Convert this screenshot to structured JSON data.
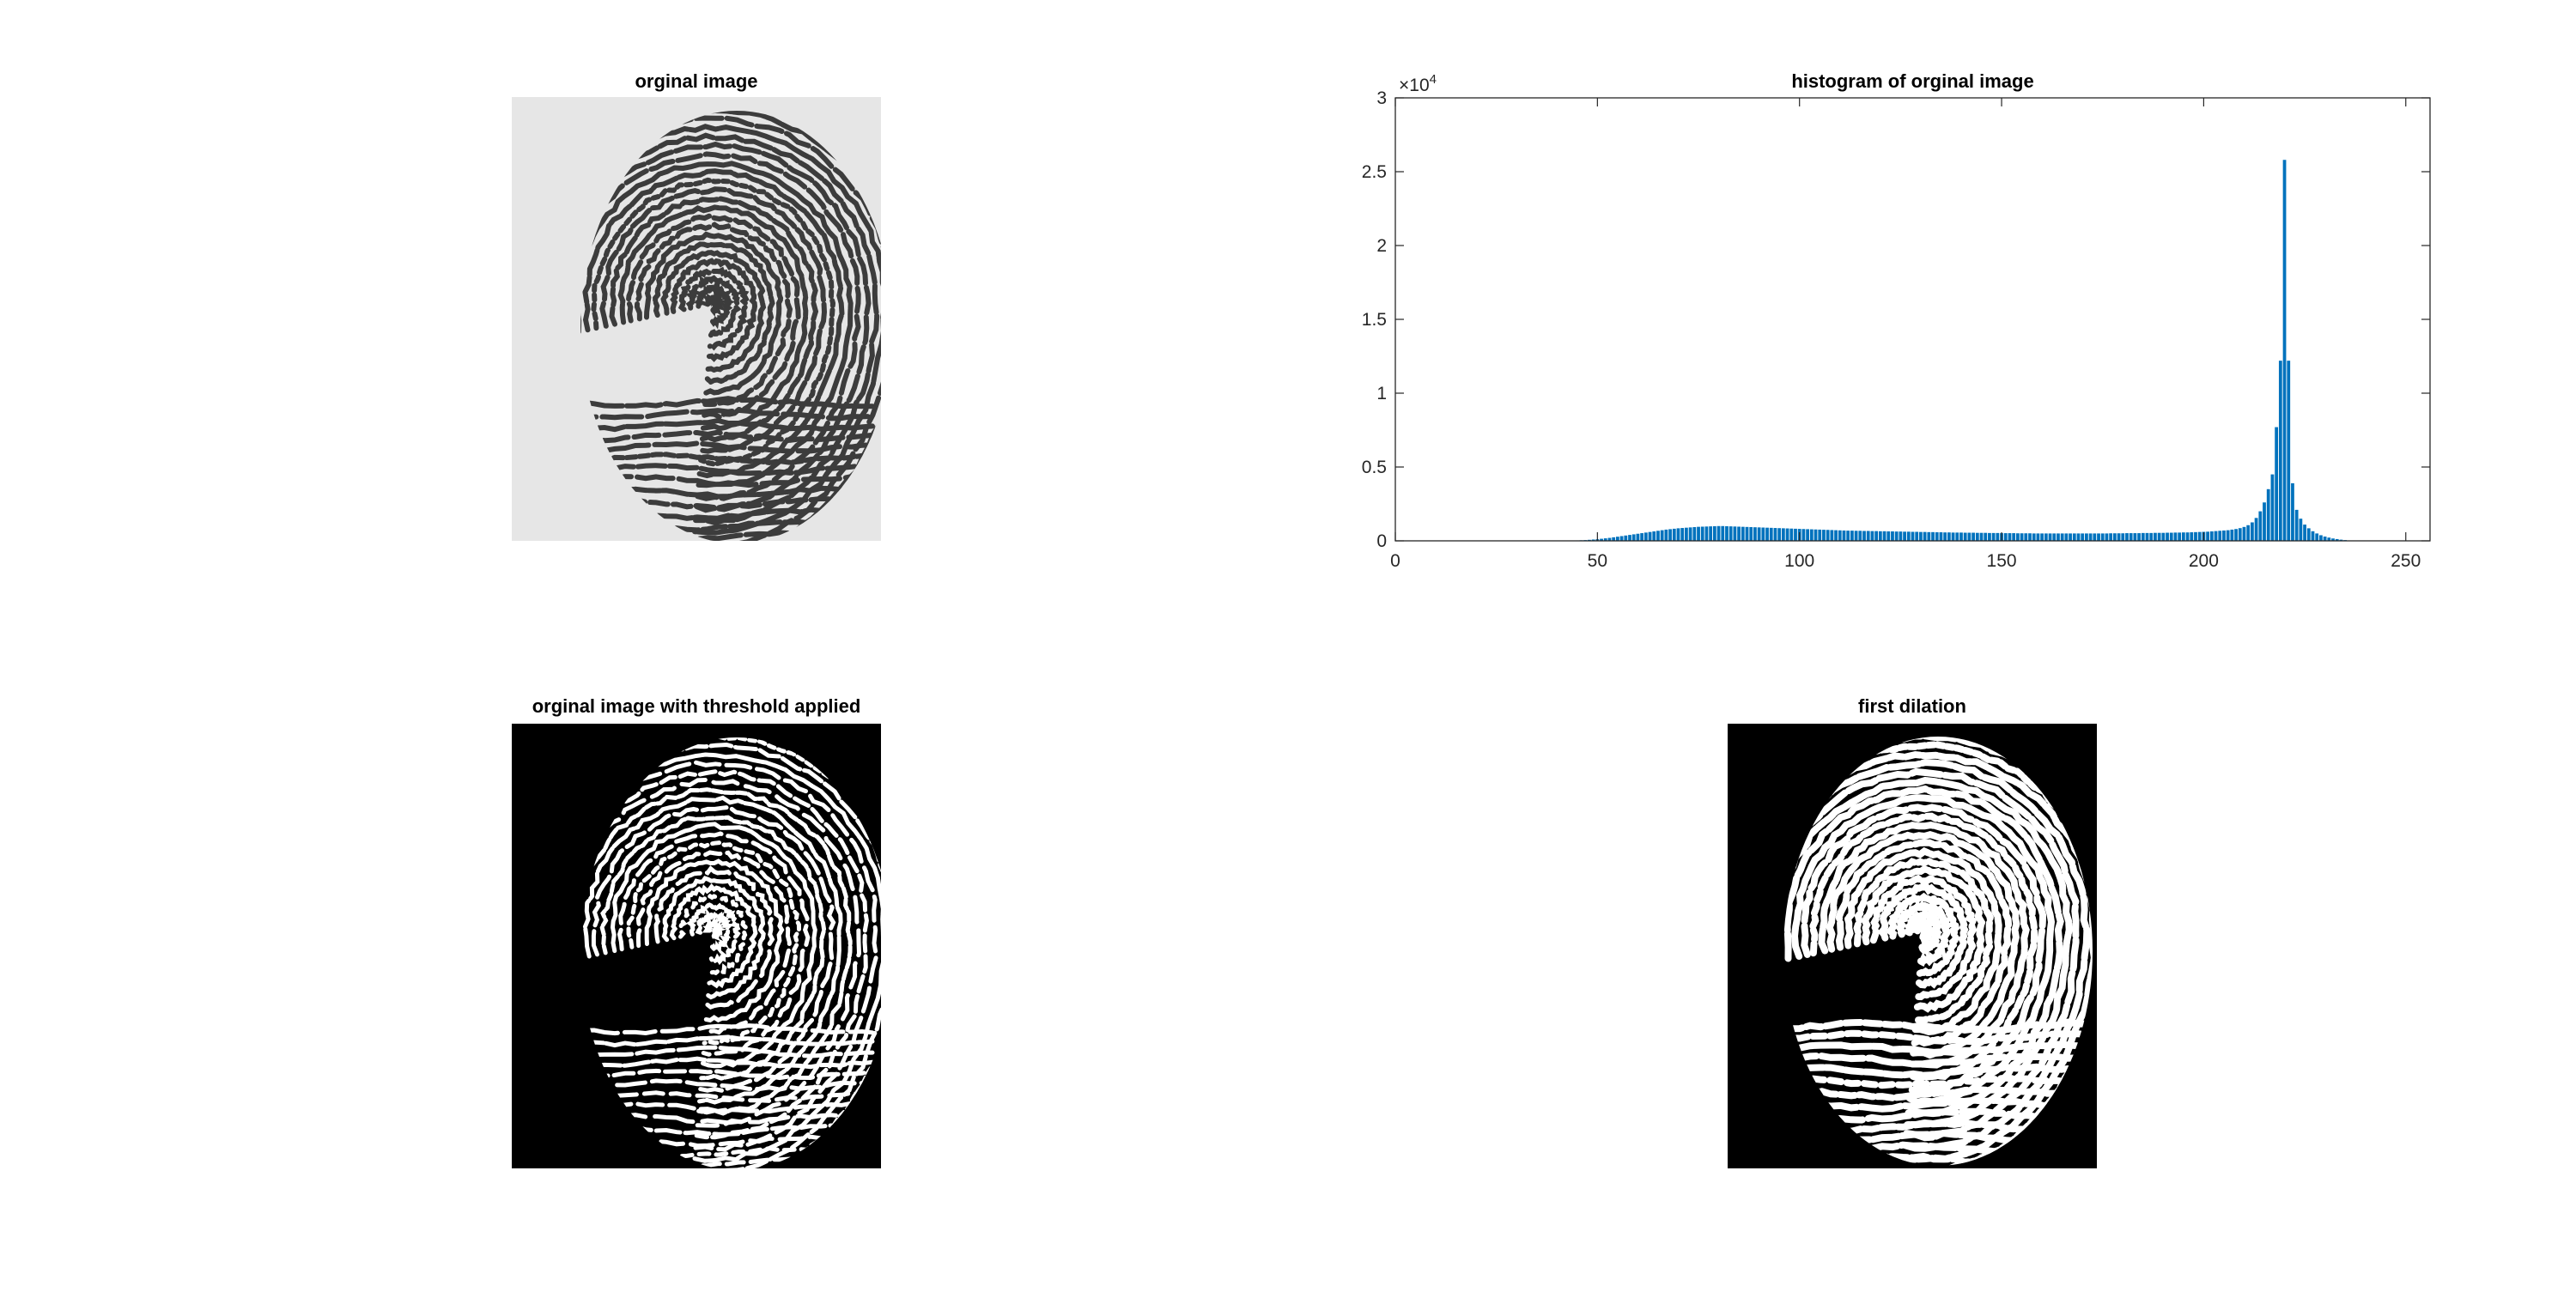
{
  "figure": {
    "panels": [
      {
        "id": "p1",
        "title": "orginal image",
        "kind": "grayscale-fingerprint"
      },
      {
        "id": "p2",
        "title": "histogram of orginal image",
        "kind": "histogram"
      },
      {
        "id": "p3",
        "title": "orginal image with threshold applied",
        "kind": "binary-fingerprint"
      },
      {
        "id": "p4",
        "title": "first dilation",
        "kind": "dilated-fingerprint"
      }
    ]
  },
  "colors": {
    "bar": "#0072BD",
    "axis": "#262626",
    "image_bg_gray": "#e6e6e6",
    "ridge_dark": "#3c3c3c",
    "binary_bg": "#000000",
    "binary_fg": "#ffffff"
  },
  "chart_data": {
    "type": "bar",
    "title": "histogram of orginal image",
    "xlabel": "",
    "ylabel": "",
    "xlim": [
      0,
      256
    ],
    "ylim": [
      0,
      30000
    ],
    "y_exponent_label": "×10",
    "y_exponent_power": "4",
    "xticks": [
      0,
      50,
      100,
      150,
      200,
      250
    ],
    "xtick_labels": [
      "0",
      "50",
      "100",
      "150",
      "200",
      "250"
    ],
    "yticks": [
      0,
      5000,
      10000,
      15000,
      20000,
      25000,
      30000
    ],
    "ytick_labels": [
      "0",
      "0.5",
      "1",
      "1.5",
      "2",
      "2.5",
      "3"
    ],
    "grid": false,
    "bins_x": [
      45,
      46,
      47,
      48,
      49,
      50,
      51,
      52,
      53,
      54,
      55,
      56,
      57,
      58,
      59,
      60,
      61,
      62,
      63,
      64,
      65,
      66,
      67,
      68,
      69,
      70,
      71,
      72,
      73,
      74,
      75,
      76,
      77,
      78,
      79,
      80,
      81,
      82,
      83,
      84,
      85,
      86,
      87,
      88,
      89,
      90,
      91,
      92,
      93,
      94,
      95,
      96,
      97,
      98,
      99,
      100,
      101,
      102,
      103,
      104,
      105,
      106,
      107,
      108,
      109,
      110,
      111,
      112,
      113,
      114,
      115,
      116,
      117,
      118,
      119,
      120,
      121,
      122,
      123,
      124,
      125,
      126,
      127,
      128,
      129,
      130,
      131,
      132,
      133,
      134,
      135,
      136,
      137,
      138,
      139,
      140,
      141,
      142,
      143,
      144,
      145,
      146,
      147,
      148,
      149,
      150,
      151,
      152,
      153,
      154,
      155,
      156,
      157,
      158,
      159,
      160,
      161,
      162,
      163,
      164,
      165,
      166,
      167,
      168,
      169,
      170,
      171,
      172,
      173,
      174,
      175,
      176,
      177,
      178,
      179,
      180,
      181,
      182,
      183,
      184,
      185,
      186,
      187,
      188,
      189,
      190,
      191,
      192,
      193,
      194,
      195,
      196,
      197,
      198,
      199,
      200,
      201,
      202,
      203,
      204,
      205,
      206,
      207,
      208,
      209,
      210,
      211,
      212,
      213,
      214,
      215,
      216,
      217,
      218,
      219,
      220,
      221,
      222,
      223,
      224,
      225,
      226,
      227,
      228,
      229,
      230,
      231,
      232,
      233,
      234,
      235,
      236,
      237,
      238,
      239,
      240,
      241,
      242,
      243,
      244,
      245
    ],
    "values": [
      30,
      40,
      50,
      70,
      90,
      110,
      140,
      170,
      200,
      240,
      280,
      320,
      360,
      400,
      440,
      480,
      520,
      560,
      600,
      640,
      680,
      720,
      760,
      790,
      820,
      850,
      870,
      890,
      910,
      930,
      950,
      960,
      970,
      980,
      990,
      1000,
      1000,
      990,
      980,
      970,
      960,
      950,
      940,
      930,
      920,
      910,
      900,
      890,
      880,
      870,
      860,
      850,
      840,
      830,
      820,
      810,
      800,
      790,
      780,
      770,
      760,
      750,
      740,
      730,
      720,
      710,
      700,
      690,
      690,
      680,
      680,
      670,
      670,
      660,
      660,
      650,
      650,
      640,
      640,
      630,
      630,
      620,
      620,
      610,
      610,
      600,
      600,
      590,
      590,
      580,
      580,
      570,
      570,
      560,
      560,
      560,
      550,
      550,
      550,
      540,
      540,
      540,
      530,
      530,
      530,
      520,
      520,
      520,
      520,
      510,
      510,
      510,
      510,
      500,
      500,
      500,
      500,
      500,
      500,
      500,
      500,
      500,
      500,
      500,
      500,
      500,
      500,
      500,
      500,
      500,
      500,
      500,
      510,
      510,
      510,
      510,
      520,
      520,
      520,
      520,
      530,
      530,
      530,
      540,
      540,
      540,
      550,
      550,
      560,
      560,
      570,
      570,
      580,
      590,
      600,
      610,
      620,
      640,
      660,
      680,
      700,
      720,
      760,
      800,
      860,
      940,
      1060,
      1250,
      1550,
      2000,
      2600,
      3500,
      4500,
      7700,
      12200,
      25800,
      12200,
      3900,
      2100,
      1500,
      1100,
      850,
      650,
      500,
      380,
      290,
      220,
      160,
      120,
      80,
      50
    ]
  }
}
